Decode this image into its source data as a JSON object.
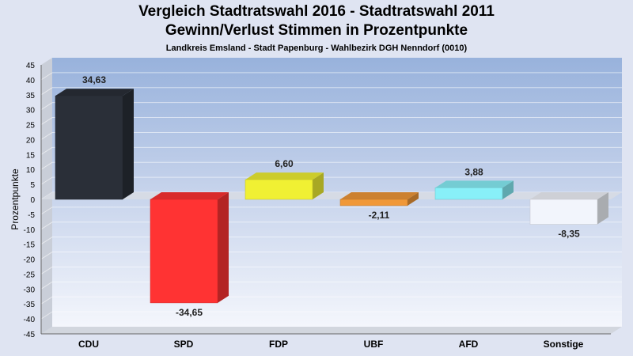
{
  "header": {
    "title_line1": "Vergleich Stadtratswahl 2016 - Stadtratswahl 2011",
    "title_line2": "Gewinn/Verlust Stimmen in Prozentpunkte",
    "subtitle": "Landkreis Emsland - Stadt Papenburg - Wahlbezirk DGH Nenndorf (0010)"
  },
  "chart_data": {
    "type": "bar",
    "title": "Vergleich Stadtratswahl 2016 - Stadtratswahl 2011 / Gewinn/Verlust Stimmen in Prozentpunkte",
    "subtitle": "Landkreis Emsland - Stadt Papenburg - Wahlbezirk DGH Nenndorf (0010)",
    "xlabel": "",
    "ylabel": "Prozentpunkte",
    "ylim": [
      -45,
      45
    ],
    "ytick_step": 5,
    "grid": true,
    "categories": [
      "CDU",
      "SPD",
      "FDP",
      "UBF",
      "AFD",
      "Sonstige"
    ],
    "values": [
      34.63,
      -34.65,
      6.6,
      -2.11,
      3.88,
      -8.35
    ],
    "value_labels": [
      "34,63",
      "-34,65",
      "6,60",
      "-2,11",
      "3,88",
      "-8,35"
    ],
    "colors": [
      "#2a2f38",
      "#ff3333",
      "#f0f033",
      "#f09838",
      "#88f0f8",
      "#f2f5fc"
    ]
  }
}
